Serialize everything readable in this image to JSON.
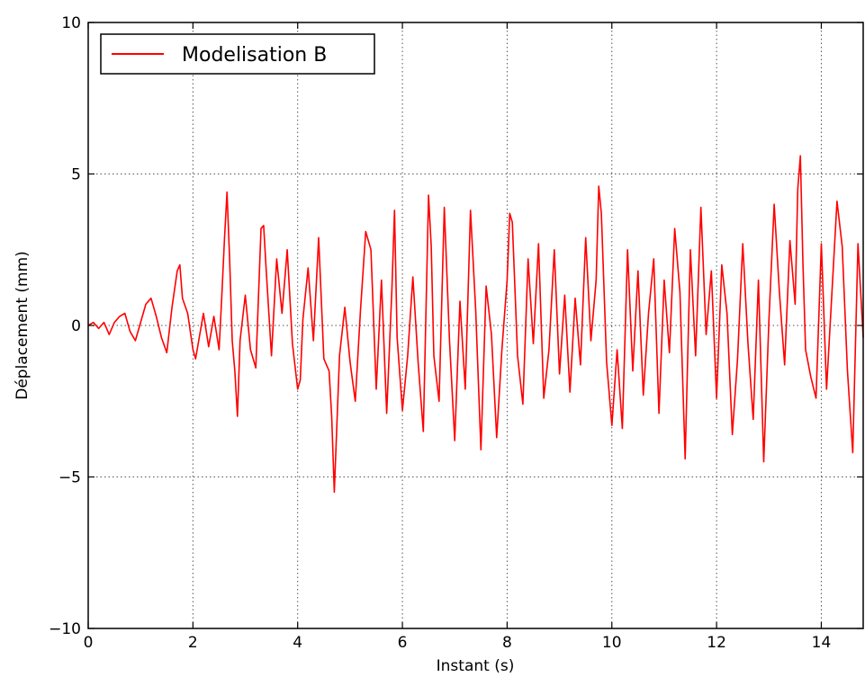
{
  "chart_data": {
    "type": "line",
    "xlabel": "Instant (s)",
    "ylabel": "Déplacement (mm)",
    "xlim": [
      0,
      14.8
    ],
    "ylim": [
      -10,
      10
    ],
    "xticks": [
      0,
      2,
      4,
      6,
      8,
      10,
      12,
      14
    ],
    "yticks": [
      -10,
      -5,
      0,
      5,
      10
    ],
    "xtick_labels": [
      "0",
      "2",
      "4",
      "6",
      "8",
      "10",
      "12",
      "14"
    ],
    "ytick_labels": [
      "−10",
      "−5",
      "0",
      "5",
      "10"
    ],
    "grid": true,
    "legend_position": "top-left",
    "series": [
      {
        "name": "Modelisation B",
        "color": "#ff0000",
        "x": [
          0,
          0.1,
          0.2,
          0.3,
          0.4,
          0.5,
          0.6,
          0.7,
          0.8,
          0.9,
          1.0,
          1.1,
          1.2,
          1.3,
          1.4,
          1.5,
          1.6,
          1.7,
          1.75,
          1.8,
          1.9,
          2.0,
          2.05,
          2.1,
          2.2,
          2.3,
          2.4,
          2.5,
          2.55,
          2.6,
          2.65,
          2.7,
          2.75,
          2.8,
          2.85,
          2.9,
          3.0,
          3.1,
          3.2,
          3.3,
          3.35,
          3.4,
          3.5,
          3.6,
          3.7,
          3.8,
          3.9,
          4.0,
          4.05,
          4.1,
          4.2,
          4.3,
          4.4,
          4.5,
          4.6,
          4.65,
          4.7,
          4.8,
          4.9,
          5.0,
          5.1,
          5.2,
          5.3,
          5.4,
          5.5,
          5.6,
          5.7,
          5.8,
          5.85,
          5.9,
          6.0,
          6.1,
          6.2,
          6.3,
          6.4,
          6.5,
          6.55,
          6.6,
          6.7,
          6.8,
          6.9,
          7.0,
          7.1,
          7.2,
          7.3,
          7.4,
          7.5,
          7.6,
          7.7,
          7.8,
          7.9,
          8.0,
          8.05,
          8.1,
          8.2,
          8.3,
          8.4,
          8.5,
          8.6,
          8.7,
          8.8,
          8.9,
          9.0,
          9.1,
          9.2,
          9.3,
          9.4,
          9.5,
          9.6,
          9.7,
          9.75,
          9.8,
          9.9,
          10.0,
          10.1,
          10.2,
          10.3,
          10.4,
          10.5,
          10.6,
          10.7,
          10.8,
          10.9,
          11.0,
          11.1,
          11.2,
          11.3,
          11.4,
          11.5,
          11.6,
          11.7,
          11.8,
          11.9,
          12.0,
          12.1,
          12.2,
          12.3,
          12.4,
          12.5,
          12.6,
          12.7,
          12.8,
          12.9,
          13.0,
          13.1,
          13.2,
          13.3,
          13.4,
          13.5,
          13.55,
          13.6,
          13.65,
          13.7,
          13.8,
          13.9,
          14.0,
          14.1,
          14.2,
          14.3,
          14.4,
          14.5,
          14.6,
          14.7,
          14.8
        ],
        "y": [
          0,
          0.1,
          -0.1,
          0.1,
          -0.3,
          0.1,
          0.3,
          0.4,
          -0.2,
          -0.5,
          0.1,
          0.7,
          0.9,
          0.3,
          -0.4,
          -0.9,
          0.6,
          1.8,
          2.0,
          0.9,
          0.4,
          -0.8,
          -1.1,
          -0.6,
          0.4,
          -0.7,
          0.3,
          -0.8,
          0.9,
          2.8,
          4.4,
          2.2,
          -0.5,
          -1.5,
          -3.0,
          -0.5,
          1.0,
          -0.8,
          -1.4,
          3.2,
          3.3,
          1.8,
          -1.0,
          2.2,
          0.4,
          2.5,
          -0.6,
          -2.1,
          -1.8,
          0.2,
          1.9,
          -0.5,
          2.9,
          -1.1,
          -1.5,
          -3.0,
          -5.5,
          -1.0,
          0.6,
          -1.2,
          -2.5,
          0.5,
          3.1,
          2.5,
          -2.1,
          1.5,
          -2.9,
          1.2,
          3.8,
          -0.4,
          -2.8,
          -1.0,
          1.6,
          -1.2,
          -3.5,
          4.3,
          2.6,
          -1.0,
          -2.5,
          3.9,
          -0.5,
          -3.8,
          0.8,
          -2.1,
          3.8,
          0.5,
          -4.1,
          1.3,
          -0.3,
          -3.7,
          -0.8,
          1.5,
          3.7,
          3.4,
          -1.0,
          -2.6,
          2.2,
          -0.6,
          2.7,
          -2.4,
          -0.8,
          2.5,
          -1.6,
          1.0,
          -2.2,
          0.9,
          -1.3,
          2.9,
          -0.5,
          1.5,
          4.6,
          3.7,
          -1.2,
          -3.3,
          -0.8,
          -3.4,
          2.5,
          -1.5,
          1.8,
          -2.3,
          0.4,
          2.2,
          -2.9,
          1.5,
          -0.9,
          3.2,
          1.1,
          -4.4,
          2.5,
          -1.0,
          3.9,
          -0.3,
          1.8,
          -2.4,
          2.0,
          0.4,
          -3.6,
          -1.1,
          2.7,
          -0.6,
          -3.1,
          1.5,
          -4.5,
          0.2,
          4.0,
          1.1,
          -1.3,
          2.8,
          0.7,
          4.5,
          5.6,
          2.0,
          -0.8,
          -1.7,
          -2.4,
          2.7,
          -2.1,
          1.0,
          4.1,
          2.6,
          -1.5,
          -4.2,
          2.7,
          -0.4
        ]
      }
    ]
  }
}
